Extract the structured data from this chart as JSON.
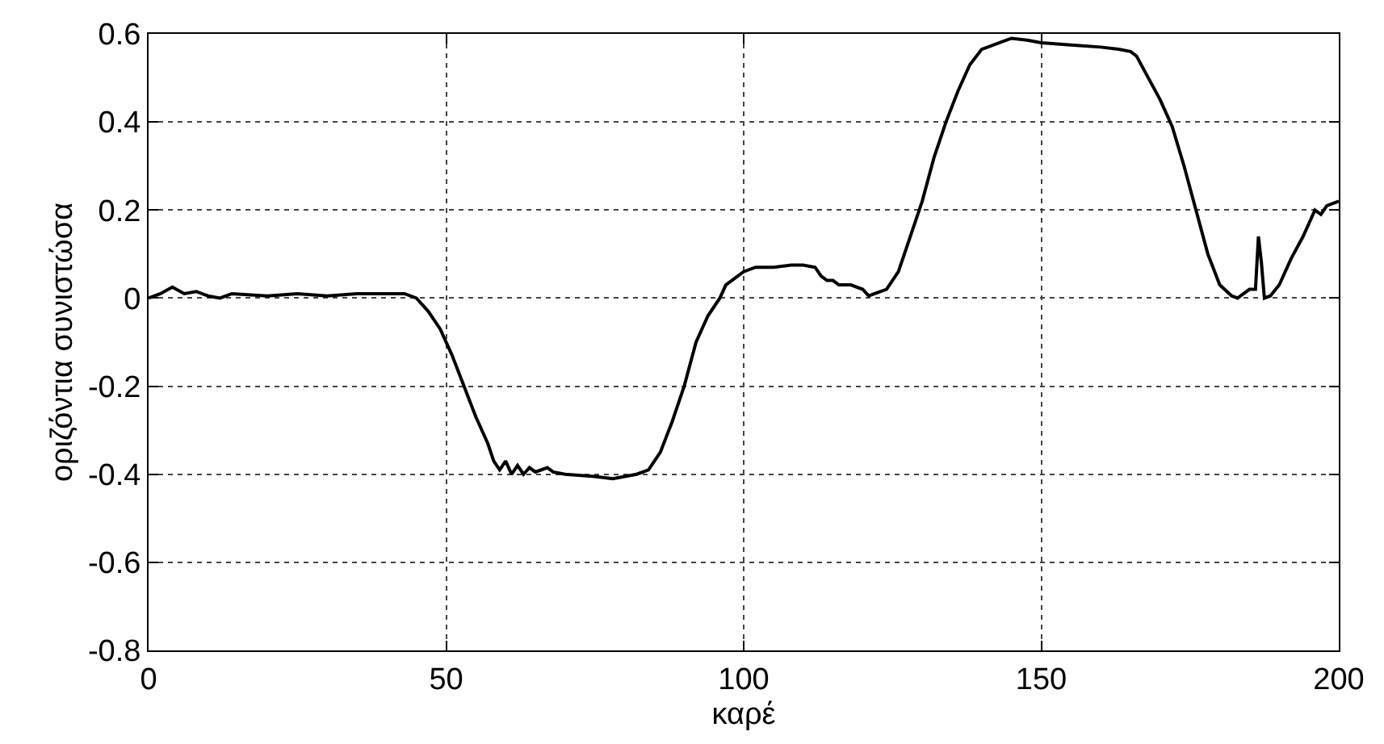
{
  "chart_data": {
    "type": "line",
    "xlabel": "καρέ",
    "ylabel": "οριζόντια συνιστώσα",
    "x": [
      0,
      2,
      4,
      6,
      8,
      10,
      12,
      14,
      20,
      25,
      30,
      35,
      40,
      43,
      45,
      47,
      49,
      51,
      53,
      55,
      57,
      58,
      59,
      60,
      61,
      62,
      63,
      64,
      65,
      67,
      68,
      70,
      75,
      78,
      80,
      82,
      84,
      86,
      88,
      90,
      92,
      94,
      96,
      97,
      98,
      99,
      100,
      102,
      105,
      108,
      110,
      112,
      113,
      114,
      115,
      116,
      118,
      120,
      121,
      122,
      124,
      126,
      128,
      130,
      132,
      134,
      136,
      138,
      140,
      143,
      145,
      148,
      150,
      155,
      160,
      163,
      165,
      166,
      168,
      170,
      172,
      174,
      176,
      178,
      180,
      182,
      183,
      184,
      185,
      186,
      186.5,
      187,
      187.5,
      188.5,
      190,
      192,
      194,
      196,
      197,
      198,
      200
    ],
    "series": [
      {
        "color": "#000000",
        "values": [
          0,
          0.01,
          0.025,
          0.01,
          0.015,
          0.005,
          0,
          0.01,
          0.005,
          0.01,
          0.005,
          0.01,
          0.01,
          0.01,
          0,
          -0.03,
          -0.07,
          -0.13,
          -0.2,
          -0.27,
          -0.33,
          -0.37,
          -0.39,
          -0.37,
          -0.4,
          -0.38,
          -0.4,
          -0.385,
          -0.395,
          -0.385,
          -0.395,
          -0.4,
          -0.405,
          -0.41,
          -0.405,
          -0.4,
          -0.39,
          -0.35,
          -0.28,
          -0.2,
          -0.1,
          -0.04,
          0,
          0.03,
          0.04,
          0.05,
          0.06,
          0.07,
          0.07,
          0.075,
          0.075,
          0.07,
          0.05,
          0.04,
          0.04,
          0.03,
          0.03,
          0.02,
          0.005,
          0.01,
          0.02,
          0.06,
          0.14,
          0.22,
          0.32,
          0.4,
          0.47,
          0.53,
          0.565,
          0.58,
          0.59,
          0.585,
          0.58,
          0.575,
          0.57,
          0.565,
          0.56,
          0.55,
          0.5,
          0.45,
          0.39,
          0.3,
          0.2,
          0.1,
          0.03,
          0.005,
          0,
          0.01,
          0.02,
          0.02,
          0.14,
          0.08,
          0,
          0.005,
          0.03,
          0.09,
          0.14,
          0.2,
          0.19,
          0.21,
          0.22
        ]
      }
    ],
    "xlim": [
      0,
      200
    ],
    "xticks": [
      0,
      50,
      100,
      150,
      200
    ],
    "ylim": [
      -0.8,
      0.6
    ],
    "yticks": [
      -0.8,
      -0.6,
      -0.4,
      -0.2,
      0,
      0.2,
      0.4,
      0.6
    ],
    "grid": true,
    "line_style": "solid",
    "marker": "none"
  }
}
